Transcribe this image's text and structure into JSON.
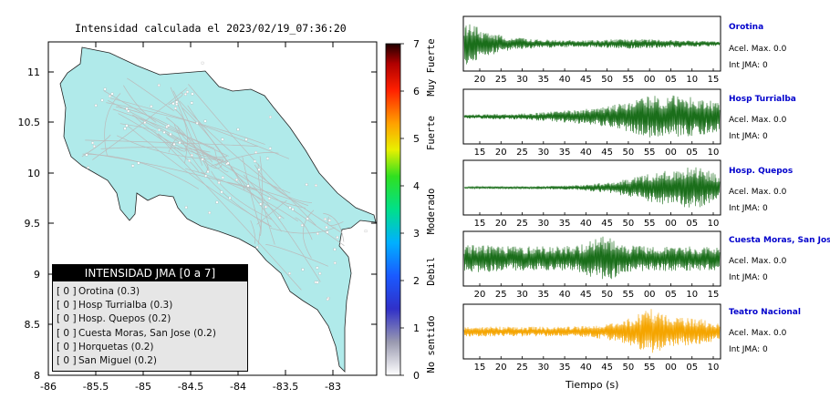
{
  "map": {
    "title": "Intensidad calculada el 2023/02/19_07:36:20",
    "lon_ticks": [
      "-86",
      "-85.5",
      "-85",
      "-84.5",
      "-84",
      "-83.5",
      "-83"
    ],
    "lat_ticks": [
      "11",
      "10.5",
      "10",
      "9.5",
      "9",
      "8.5",
      "8"
    ],
    "land_color": "#b0eaea",
    "road_color": "#bbbbbb"
  },
  "legend": {
    "title": "INTENSIDAD JMA [0 a 7]",
    "items": [
      {
        "value": "[ 0 ]",
        "label": "Orotina (0.3)"
      },
      {
        "value": "[ 0 ]",
        "label": "Hosp Turrialba (0.3)"
      },
      {
        "value": "[ 0 ]",
        "label": "Hosp. Quepos (0.2)"
      },
      {
        "value": "[ 0 ]",
        "label": "Cuesta Moras, San Jose (0.2)"
      },
      {
        "value": "[ 0 ]",
        "label": "Horquetas (0.2)"
      },
      {
        "value": "[ 0 ]",
        "label": "San Miguel (0.2)"
      }
    ]
  },
  "colorbar": {
    "ticks": [
      "7",
      "6",
      "5",
      "4",
      "3",
      "2",
      "1",
      "0"
    ],
    "labels": [
      "Muy Fuerte",
      "Fuerte",
      "Moderado",
      "Debil",
      "No sentido"
    ]
  },
  "chart_data": [
    {
      "type": "line",
      "station": "Orotina",
      "x_ticks": [
        "20",
        "25",
        "30",
        "35",
        "40",
        "45",
        "50",
        "55",
        "00",
        "05",
        "10",
        "15"
      ],
      "amplitude_envelope": [
        0.9,
        0.5,
        0.25,
        0.2,
        0.15,
        0.14,
        0.16,
        0.2,
        0.18,
        0.15,
        0.12,
        0.1
      ],
      "color": "#1a6e1a",
      "accel_max": "Acel. Max. 0.0",
      "int_jma": "Int JMA: 0"
    },
    {
      "type": "line",
      "station": "Hosp Turrialba",
      "x_ticks": [
        "15",
        "20",
        "25",
        "30",
        "35",
        "40",
        "45",
        "50",
        "55",
        "00",
        "05",
        "10"
      ],
      "amplitude_envelope": [
        0.08,
        0.1,
        0.12,
        0.15,
        0.22,
        0.3,
        0.4,
        0.6,
        0.85,
        0.9,
        0.8,
        0.6
      ],
      "color": "#1a6e1a",
      "accel_max": "Acel. Max. 0.0",
      "int_jma": "Int JMA: 0"
    },
    {
      "type": "line",
      "station": "Hosp. Quepos",
      "x_ticks": [
        "15",
        "20",
        "25",
        "30",
        "35",
        "40",
        "45",
        "50",
        "55",
        "00",
        "05",
        "10"
      ],
      "amplitude_envelope": [
        0.04,
        0.05,
        0.05,
        0.06,
        0.08,
        0.1,
        0.2,
        0.35,
        0.6,
        0.75,
        0.9,
        0.5
      ],
      "color": "#1a6e1a",
      "accel_max": "Acel. Max. 0.0",
      "int_jma": "Int JMA: 0"
    },
    {
      "type": "line",
      "station": "Cuesta Moras, San Jose",
      "x_ticks": [
        "20",
        "25",
        "30",
        "35",
        "40",
        "45",
        "50",
        "55",
        "00",
        "05",
        "10",
        "15"
      ],
      "amplitude_envelope": [
        0.55,
        0.55,
        0.5,
        0.5,
        0.5,
        0.55,
        1.0,
        0.55,
        0.5,
        0.5,
        0.5,
        0.5
      ],
      "color": "#1a6e1a",
      "accel_max": "Acel. Max. 0.0",
      "int_jma": "Int JMA: 0"
    },
    {
      "type": "line",
      "station": "Teatro Nacional",
      "x_ticks": [
        "15",
        "20",
        "25",
        "30",
        "35",
        "40",
        "45",
        "50",
        "55",
        "00",
        "05",
        "10"
      ],
      "amplitude_envelope": [
        0.2,
        0.2,
        0.2,
        0.2,
        0.2,
        0.22,
        0.3,
        0.5,
        0.95,
        0.6,
        0.55,
        0.35
      ],
      "color": "#f5a500",
      "accel_max": "Acel. Max. 0.0",
      "int_jma": "Int JMA: 0"
    }
  ],
  "x_axis_label": "Tiempo (s)"
}
